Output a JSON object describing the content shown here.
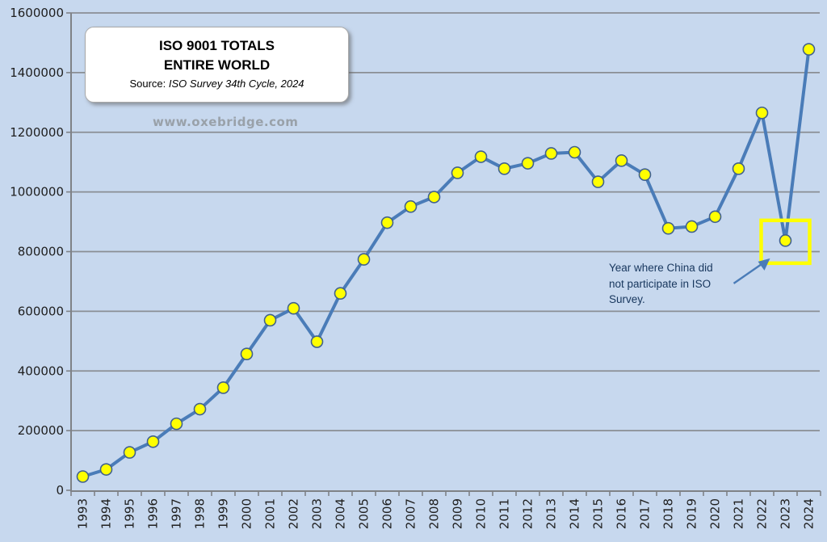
{
  "header": {
    "title": "ISO 9001 TOTALS",
    "subtitle": "ENTIRE WORLD",
    "source_prefix": "Source:",
    "source_text": "ISO Survey 34th Cycle, 2024"
  },
  "watermark": "www.oxebridge.com",
  "annotation": {
    "lines": [
      "Year where China did",
      "not participate in ISO",
      "Survey."
    ]
  },
  "chart_data": {
    "type": "line",
    "title": "ISO 9001 TOTALS",
    "subtitle": "ENTIRE WORLD",
    "source": "Source: ISO Survey 34th Cycle, 2024",
    "xlabel": "",
    "ylabel": "",
    "categories": [
      1993,
      1994,
      1995,
      1996,
      1997,
      1998,
      1999,
      2000,
      2001,
      2002,
      2003,
      2004,
      2005,
      2006,
      2007,
      2008,
      2009,
      2010,
      2011,
      2012,
      2013,
      2014,
      2015,
      2016,
      2017,
      2018,
      2019,
      2020,
      2021,
      2022,
      2023,
      2024
    ],
    "values": [
      46000,
      70000,
      127000,
      163000,
      223000,
      272000,
      344000,
      457000,
      570000,
      610000,
      498000,
      660000,
      774000,
      897000,
      951000,
      983000,
      1064000,
      1118000,
      1078000,
      1096000,
      1129000,
      1133000,
      1034000,
      1105000,
      1058000,
      878000,
      884000,
      917000,
      1078000,
      1265000,
      837000,
      1478000
    ],
    "ylim": [
      0,
      1600000
    ],
    "ytick_step": 200000,
    "grid": true,
    "legend": false,
    "highlight": {
      "year": 2023,
      "note": "Year where China did not participate in ISO Survey."
    },
    "colors": {
      "background": "#c7d8ee",
      "gridline": "#8a8e94",
      "axis": "#7f8287",
      "line": "#4a7cb8",
      "marker_fill": "#ffff00",
      "marker_border": "#41618e",
      "highlight_box": "#ffff00",
      "annotation_text": "#17365d",
      "arrow": "#4a7cb8"
    }
  }
}
